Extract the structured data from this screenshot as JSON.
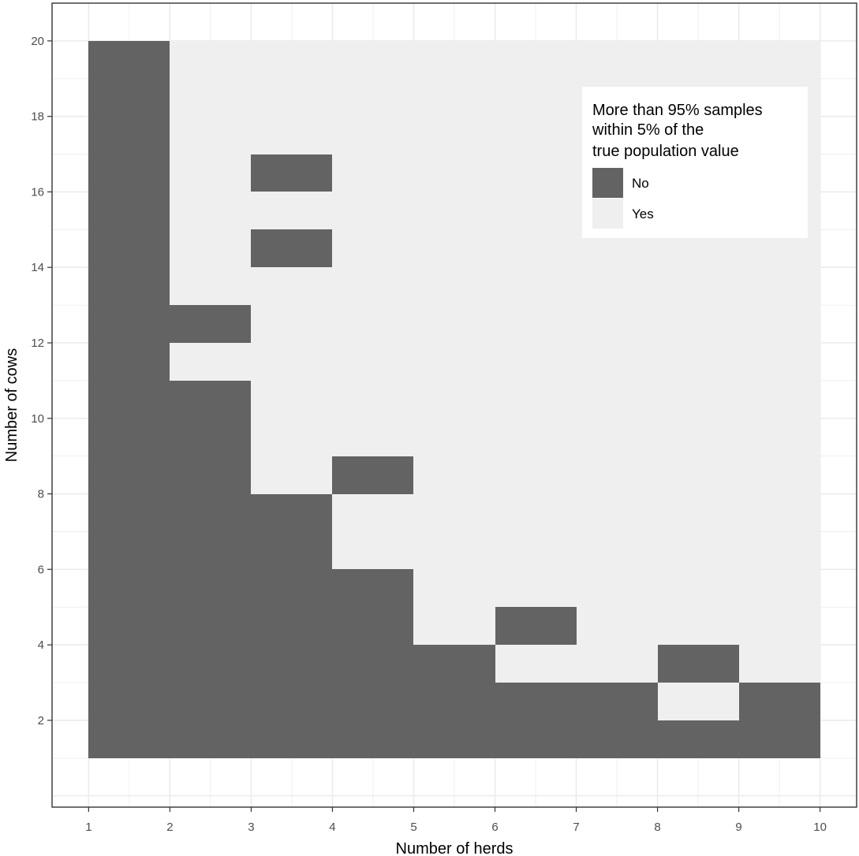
{
  "chart_data": {
    "type": "heatmap",
    "title": "",
    "xlabel": "Number of herds",
    "ylabel": "Number of cows",
    "xlim": [
      0.55,
      10.45
    ],
    "ylim": [
      -0.3,
      21.0
    ],
    "x_ticks": [
      1,
      2,
      3,
      4,
      5,
      6,
      7,
      8,
      9,
      10
    ],
    "y_ticks": [
      2,
      4,
      6,
      8,
      10,
      12,
      14,
      16,
      18,
      20
    ],
    "grid": true,
    "legend": {
      "title_lines": [
        "More than 95% samples",
        "within 5% of the",
        "true population value"
      ],
      "entries": [
        {
          "label": "No",
          "color": "#636363"
        },
        {
          "label": "Yes",
          "color": "#efefef"
        }
      ],
      "position": "top-right"
    },
    "tile_extent": {
      "x": [
        1,
        10
      ],
      "y": [
        1,
        20
      ]
    },
    "background_value": "Yes",
    "no_regions": [
      {
        "x": [
          1,
          2
        ],
        "y": [
          1,
          20
        ]
      },
      {
        "x": [
          2,
          3
        ],
        "y": [
          12,
          13
        ]
      },
      {
        "x": [
          2,
          3
        ],
        "y": [
          1,
          11
        ]
      },
      {
        "x": [
          3,
          4
        ],
        "y": [
          16,
          17
        ]
      },
      {
        "x": [
          3,
          4
        ],
        "y": [
          14,
          15
        ]
      },
      {
        "x": [
          3,
          4
        ],
        "y": [
          1,
          8
        ]
      },
      {
        "x": [
          4,
          5
        ],
        "y": [
          8,
          9
        ]
      },
      {
        "x": [
          4,
          5
        ],
        "y": [
          1,
          6
        ]
      },
      {
        "x": [
          5,
          6
        ],
        "y": [
          1,
          4
        ]
      },
      {
        "x": [
          6,
          7
        ],
        "y": [
          4,
          5
        ]
      },
      {
        "x": [
          6,
          7
        ],
        "y": [
          1,
          3
        ]
      },
      {
        "x": [
          7,
          8
        ],
        "y": [
          1,
          3
        ]
      },
      {
        "x": [
          8,
          9
        ],
        "y": [
          3,
          4
        ]
      },
      {
        "x": [
          8,
          9
        ],
        "y": [
          1,
          2
        ]
      },
      {
        "x": [
          9,
          10
        ],
        "y": [
          1,
          3
        ]
      }
    ],
    "colors": {
      "no": "#636363",
      "yes": "#efefef",
      "grid": "#ebebeb",
      "panel_border": "#333333"
    }
  }
}
